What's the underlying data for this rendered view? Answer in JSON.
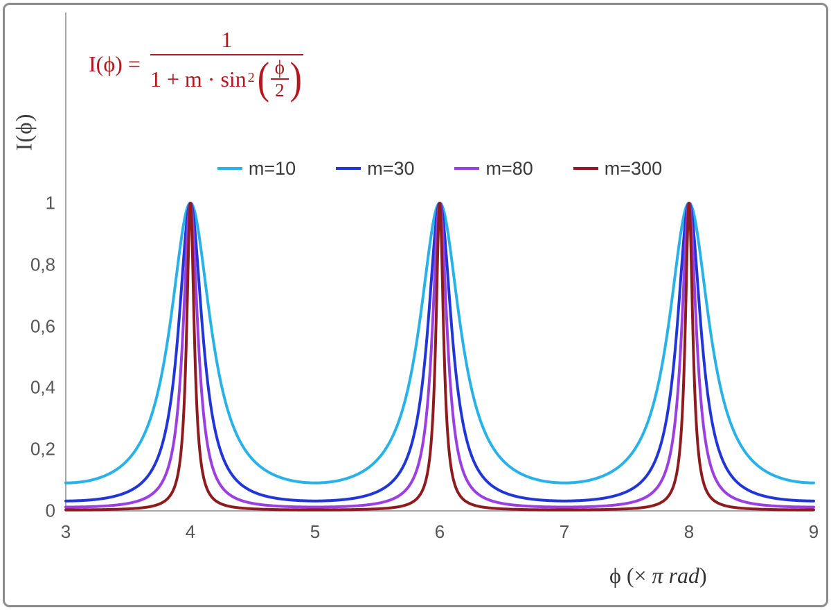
{
  "formula": {
    "lhs": "I(ϕ) =",
    "numerator": "1",
    "den_prefix": "1 + m · sin",
    "den_sup": "2",
    "inner_num": "ϕ",
    "inner_den": "2",
    "color": "#b2191f"
  },
  "axes": {
    "ylabel": "I(ϕ)",
    "xlabel_pre": "ϕ  (× ",
    "xlabel_italic": "π rad",
    "xlabel_post": ")"
  },
  "chart_data": {
    "type": "line",
    "title": "",
    "formula_text": "I(φ) = 1 / (1 + m·sin²(φ/2))",
    "function": "y = 1 / (1 + m * sin(pi*x/2)^2), x in units of π rad",
    "xlabel": "ϕ (× π rad)",
    "ylabel": "I(ϕ)",
    "x_range": [
      3,
      9
    ],
    "ylim": [
      0,
      1.62
    ],
    "peaks_at_x": [
      4,
      6,
      8
    ],
    "peak_value": 1,
    "grid": false,
    "legend_position": "top-center",
    "axis_color": "#a8a8a8",
    "x_ticks": [
      {
        "value": 3,
        "label": "3"
      },
      {
        "value": 4,
        "label": "4"
      },
      {
        "value": 5,
        "label": "5"
      },
      {
        "value": 6,
        "label": "6"
      },
      {
        "value": 7,
        "label": "7"
      },
      {
        "value": 8,
        "label": "8"
      },
      {
        "value": 9,
        "label": "9"
      }
    ],
    "y_ticks": [
      {
        "value": 0,
        "label": "0"
      },
      {
        "value": 0.2,
        "label": "0,2"
      },
      {
        "value": 0.4,
        "label": "0,4"
      },
      {
        "value": 0.6,
        "label": "0,6"
      },
      {
        "value": 0.8,
        "label": "0,8"
      },
      {
        "value": 1,
        "label": "1"
      }
    ],
    "series": [
      {
        "name": "m=10",
        "m": 10,
        "color": "#29b2e7",
        "trough_value": 0.0909
      },
      {
        "name": "m=30",
        "m": 30,
        "color": "#2136d6",
        "trough_value": 0.0323
      },
      {
        "name": "m=80",
        "m": 80,
        "color": "#9b3fe0",
        "trough_value": 0.0123
      },
      {
        "name": "m=300",
        "m": 300,
        "color": "#8e1b1d",
        "trough_value": 0.0033
      }
    ]
  }
}
